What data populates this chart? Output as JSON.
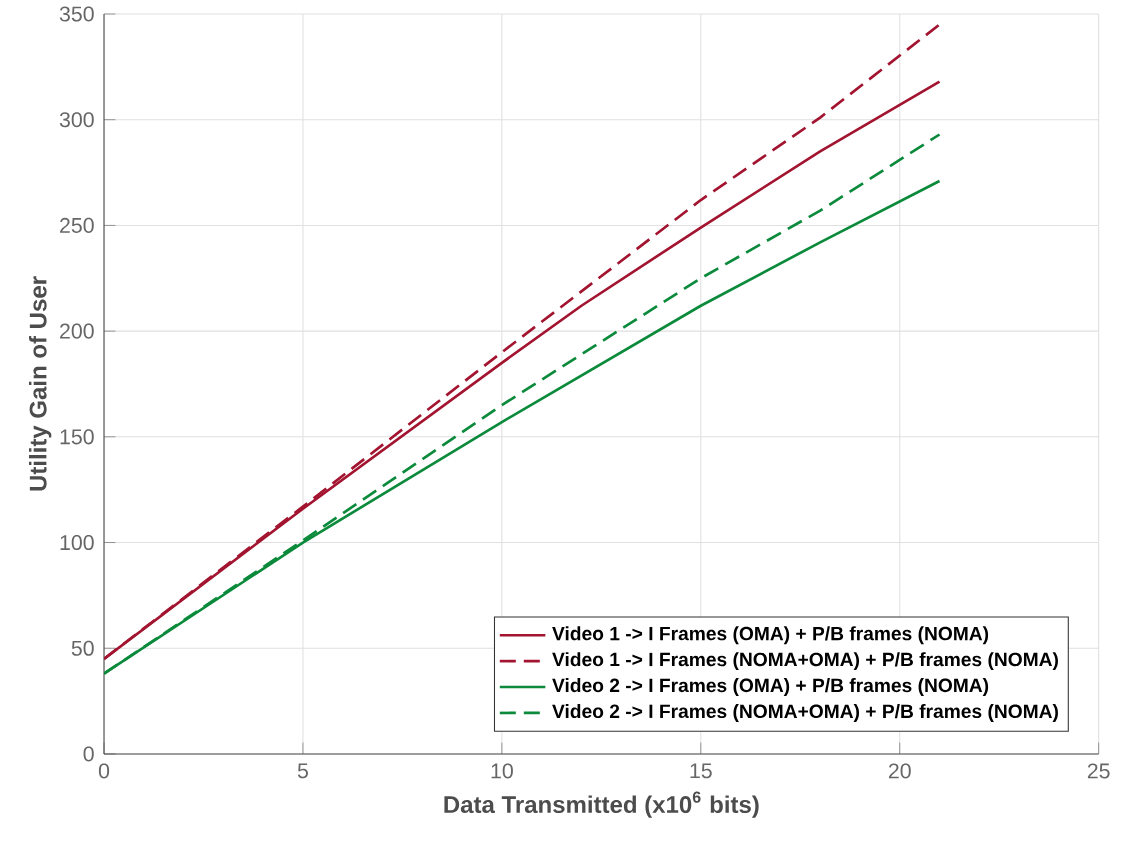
{
  "chart_data": {
    "type": "line",
    "xlabel": "Data Transmitted (x10$^{6}$ bits)",
    "ylabel": "Utility Gain of User",
    "xlim": [
      0,
      25
    ],
    "xticks": [
      0,
      5,
      10,
      15,
      20,
      25
    ],
    "ylim": [
      0,
      350
    ],
    "yticks": [
      0,
      50,
      100,
      150,
      200,
      250,
      300,
      350
    ],
    "grid": true,
    "legend": "bottom right",
    "series": [
      {
        "name": "Video 1 -> I Frames (OMA) + P/B frames (NOMA)",
        "color": "#a2142f",
        "line_style": "solid",
        "x": [
          0,
          5,
          10,
          12,
          15,
          18,
          21
        ],
        "values": [
          45,
          116,
          185,
          212,
          249,
          285,
          318
        ]
      },
      {
        "name": "Video 1 -> I Frames (NOMA+OMA) + P/B frames (NOMA)",
        "color": "#a2142f",
        "line_style": "dashed",
        "x": [
          0,
          5,
          10,
          15,
          18,
          21
        ],
        "values": [
          45,
          117,
          190,
          262,
          301,
          345
        ]
      },
      {
        "name": "Video 2 -> I Frames (OMA) + P/B frames (NOMA)",
        "color": "#0b8a3b",
        "line_style": "solid",
        "x": [
          0,
          5,
          10,
          15,
          18,
          21
        ],
        "values": [
          38,
          100,
          157,
          212,
          242,
          271
        ]
      },
      {
        "name": "Video 2 -> I Frames (NOMA+OMA) + P/B frames (NOMA)",
        "color": "#0b8a3b",
        "line_style": "dashed",
        "x": [
          0,
          5,
          10,
          15,
          18,
          21
        ],
        "values": [
          38,
          101,
          165,
          225,
          257,
          293
        ]
      }
    ]
  }
}
